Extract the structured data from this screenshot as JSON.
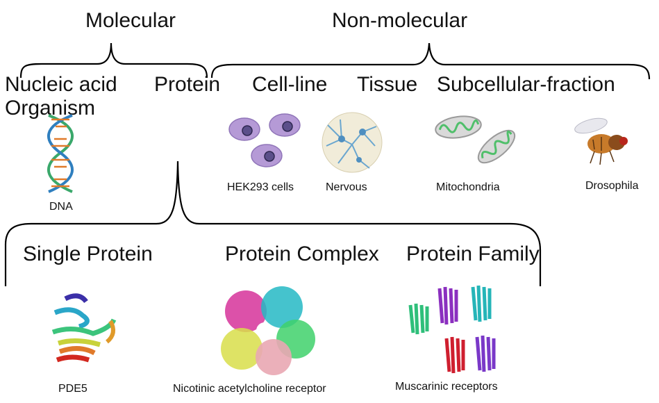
{
  "top_categories": {
    "molecular": "Molecular",
    "non_molecular": "Non-molecular"
  },
  "level2": {
    "nucleic_acid": "Nucleic acid",
    "protein": "Protein",
    "cell_line": "Cell-line",
    "tissue": "Tissue",
    "subcellular_fraction": "Subcellular-fraction",
    "organism": "Organism"
  },
  "examples": {
    "dna": "DNA",
    "hek293": "HEK293 cells",
    "nervous": "Nervous",
    "mitochondria": "Mitochondria",
    "drosophila": "Drosophila"
  },
  "protein_types": {
    "single": "Single Protein",
    "complex": "Protein Complex",
    "family": "Protein Family"
  },
  "protein_examples": {
    "pde5": "PDE5",
    "nachr": "Nicotinic acetylcholine receptor",
    "muscarinic": "Muscarinic receptors"
  }
}
